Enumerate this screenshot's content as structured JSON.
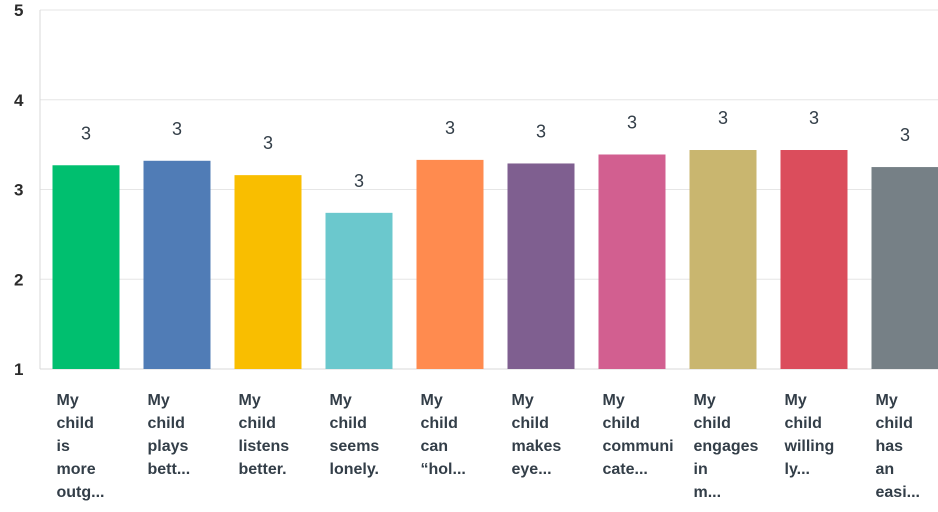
{
  "chart_data": {
    "type": "bar",
    "title": "",
    "xlabel": "",
    "ylabel": "",
    "ylim": [
      1,
      5
    ],
    "yticks": [
      1,
      2,
      3,
      4,
      5
    ],
    "grid": true,
    "categories": [
      "My child is more outg...",
      "My child plays bett...",
      "My child listens better.",
      "My child seems lonely.",
      "My child can “hol...",
      "My child makes eye...",
      "My child communicate...",
      "My child engages in m...",
      "My child willingly...",
      "My child has an easi..."
    ],
    "category_label_lines": [
      [
        "My",
        "child",
        "is",
        "more",
        "outg..."
      ],
      [
        "My",
        "child",
        "plays",
        "bett..."
      ],
      [
        "My",
        "child",
        "listens",
        "better."
      ],
      [
        "My",
        "child",
        "seems",
        "lonely."
      ],
      [
        "My",
        "child",
        "can",
        "“hol..."
      ],
      [
        "My",
        "child",
        "makes",
        "eye..."
      ],
      [
        "My",
        "child",
        "communi",
        "cate..."
      ],
      [
        "My",
        "child",
        "engages",
        "in",
        "m..."
      ],
      [
        "My",
        "child",
        "willing",
        "ly..."
      ],
      [
        "My",
        "child",
        "has",
        "an",
        "easi..."
      ]
    ],
    "values": [
      3.27,
      3.32,
      3.16,
      2.74,
      3.33,
      3.29,
      3.39,
      3.44,
      3.44,
      3.25
    ],
    "data_labels": [
      "3",
      "3",
      "3",
      "3",
      "3",
      "3",
      "3",
      "3",
      "3",
      "3"
    ],
    "colors": [
      "#00bf6f",
      "#507cb6",
      "#f9be00",
      "#6bc8cd",
      "#ff8b4f",
      "#7f5f90",
      "#d25f90",
      "#c9b66f",
      "#db4d5c",
      "#768086"
    ]
  }
}
